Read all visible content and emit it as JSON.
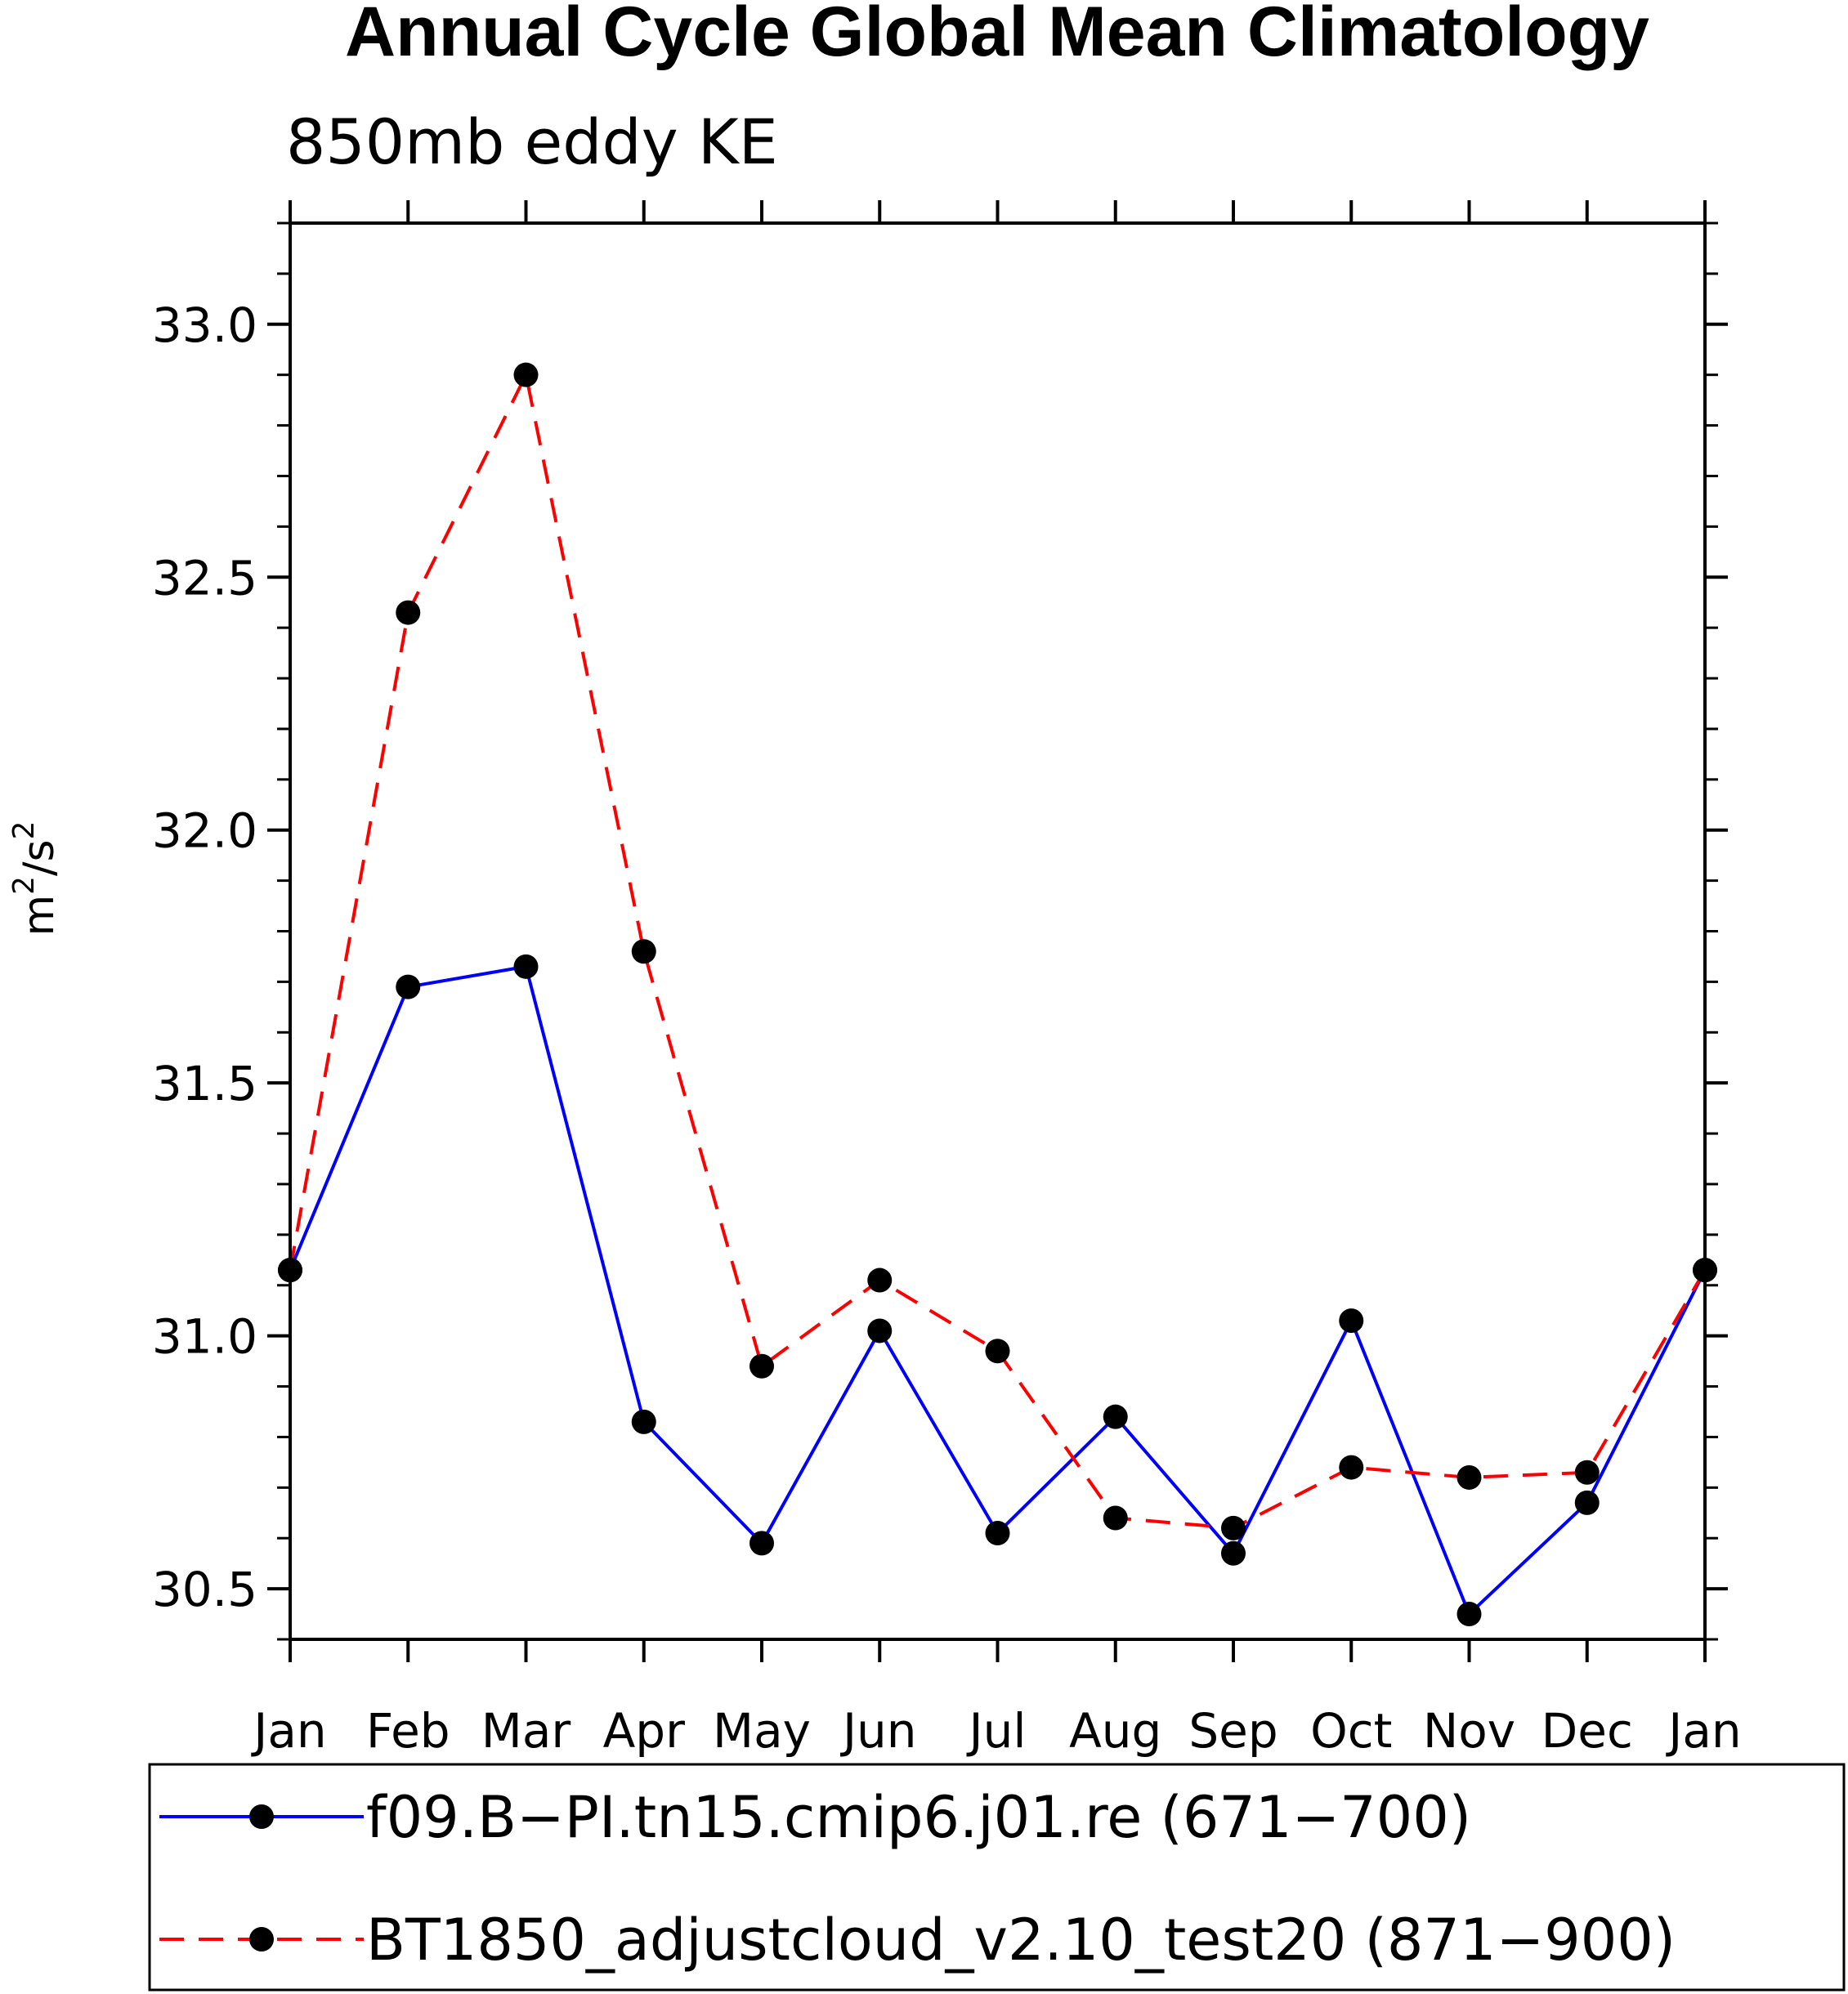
{
  "chart_data": {
    "type": "line",
    "title": "Annual Cycle Global Mean Climatology",
    "subtitle": "850mb eddy KE",
    "ylabel_base": "m",
    "ylabel_exp1": "2",
    "ylabel_mid": "/s",
    "ylabel_exp2": "2",
    "xlabel": "",
    "categories": [
      "Jan",
      "Feb",
      "Mar",
      "Apr",
      "May",
      "Jun",
      "Jul",
      "Aug",
      "Sep",
      "Oct",
      "Nov",
      "Dec",
      "Jan"
    ],
    "ylim": [
      30.4,
      33.2
    ],
    "yticks": [
      "30.5",
      "31.0",
      "31.5",
      "32.0",
      "32.5",
      "33.0"
    ],
    "grid": false,
    "legend_position": "bottom",
    "series": [
      {
        "name": "f09.B−PI.tn15.cmip6.j01.re (671−700)",
        "color": "#0000ff",
        "style": "solid",
        "values": [
          31.13,
          31.69,
          31.73,
          30.83,
          30.59,
          31.01,
          30.61,
          30.84,
          30.57,
          31.03,
          30.45,
          30.67,
          31.13
        ]
      },
      {
        "name": "BT1850_adjustcloud_v2.10_test20 (871−900)",
        "color": "#ff0000",
        "style": "dashed",
        "values": [
          31.13,
          32.43,
          32.9,
          31.76,
          30.94,
          31.11,
          30.97,
          30.64,
          30.62,
          30.74,
          30.72,
          30.73,
          31.13
        ]
      }
    ]
  }
}
